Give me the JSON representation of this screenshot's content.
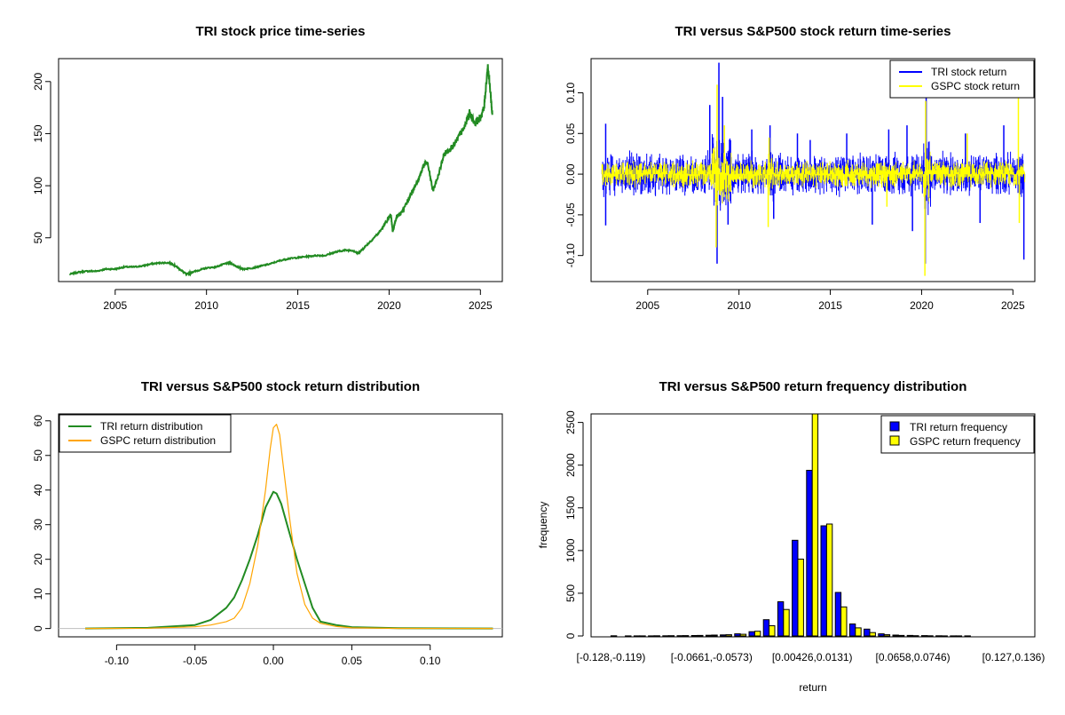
{
  "chart_data": [
    {
      "type": "line",
      "title": "TRI stock price time-series",
      "xlabel": "",
      "ylabel": "",
      "x_ticks": [
        2005,
        2010,
        2015,
        2020,
        2025
      ],
      "y_ticks": [
        50,
        100,
        150,
        200
      ],
      "xlim": [
        2001.9,
        2026.2
      ],
      "ylim": [
        8,
        222
      ],
      "series_color": "#228B22",
      "series": [
        {
          "x": [
            2002.5,
            2003,
            2003.5,
            2004,
            2004.5,
            2005,
            2005.5,
            2006,
            2006.5,
            2007,
            2007.5,
            2008,
            2008.3,
            2008.6,
            2008.9,
            2009.2,
            2009.6,
            2010,
            2010.5,
            2011,
            2011.3,
            2011.7,
            2012,
            2012.5,
            2013,
            2013.5,
            2014,
            2014.5,
            2015,
            2015.5,
            2016,
            2016.5,
            2017,
            2017.5,
            2018,
            2018.3,
            2018.6,
            2019,
            2019.5,
            2019.9,
            2020.1,
            2020.2,
            2020.4,
            2020.7,
            2021,
            2021.3,
            2021.6,
            2021.9,
            2022.1,
            2022.4,
            2022.7,
            2023,
            2023.3,
            2023.6,
            2023.9,
            2024.1,
            2024.4,
            2024.7,
            2025,
            2025.2,
            2025.4,
            2025.55,
            2025.65
          ],
          "y": [
            15,
            17,
            18,
            18,
            20,
            20,
            22,
            22,
            23,
            25,
            26,
            26,
            23,
            19,
            15,
            17,
            19,
            21,
            22,
            25,
            26,
            22,
            20,
            21,
            23,
            25,
            28,
            30,
            31,
            32,
            33,
            33,
            36,
            38,
            38,
            35,
            40,
            47,
            56,
            67,
            72,
            56,
            70,
            74,
            85,
            96,
            105,
            120,
            122,
            95,
            110,
            130,
            135,
            140,
            150,
            155,
            170,
            160,
            165,
            175,
            215,
            190,
            168
          ]
        }
      ]
    },
    {
      "type": "line",
      "title": "TRI versus S&P500 stock return time-series",
      "xlabel": "",
      "ylabel": "",
      "x_ticks": [
        2005,
        2010,
        2015,
        2020,
        2025
      ],
      "y_ticks": [
        -0.1,
        -0.05,
        0.0,
        0.05,
        0.1
      ],
      "y_tick_labels": [
        "-0.10",
        "-0.05",
        "0.00",
        "0.05",
        "0.10"
      ],
      "xlim": [
        2001.9,
        2026.2
      ],
      "ylim": [
        -0.132,
        0.142
      ],
      "legend": {
        "position": "top-right"
      },
      "series": [
        {
          "name": "TRI stock return",
          "color": "#0000FF",
          "events": [
            [
              2002.7,
              0.062
            ],
            [
              2002.7,
              -0.063
            ],
            [
              2008.4,
              0.085
            ],
            [
              2008.8,
              -0.11
            ],
            [
              2008.9,
              0.137
            ],
            [
              2009.1,
              0.095
            ],
            [
              2009.4,
              -0.062
            ],
            [
              2010.7,
              0.055
            ],
            [
              2011.7,
              0.06
            ],
            [
              2011.9,
              -0.055
            ],
            [
              2013.2,
              0.05
            ],
            [
              2013.9,
              0.042
            ],
            [
              2015.9,
              0.05
            ],
            [
              2017.3,
              -0.062
            ],
            [
              2018.2,
              0.055
            ],
            [
              2019.2,
              0.06
            ],
            [
              2019.5,
              -0.07
            ],
            [
              2020.2,
              -0.11
            ],
            [
              2020.25,
              0.1
            ],
            [
              2022.4,
              0.05
            ],
            [
              2023.2,
              -0.06
            ],
            [
              2024.5,
              0.06
            ],
            [
              2025.6,
              -0.105
            ]
          ],
          "base_amplitude": 0.03
        },
        {
          "name": "GSPC stock return",
          "color": "#FFFF00",
          "events": [
            [
              2008.75,
              -0.09
            ],
            [
              2008.8,
              0.11
            ],
            [
              2009.2,
              0.06
            ],
            [
              2011.6,
              -0.065
            ],
            [
              2011.65,
              0.045
            ],
            [
              2018.1,
              -0.04
            ],
            [
              2020.18,
              -0.125
            ],
            [
              2020.22,
              0.09
            ],
            [
              2022.5,
              0.05
            ],
            [
              2025.3,
              0.095
            ],
            [
              2025.35,
              -0.06
            ]
          ],
          "base_amplitude": 0.018
        }
      ]
    },
    {
      "type": "line",
      "title": "TRI versus S&P500 stock return distribution",
      "xlabel": "",
      "ylabel": "",
      "x_ticks": [
        -0.1,
        -0.05,
        0.0,
        0.05,
        0.1
      ],
      "x_tick_labels": [
        "-0.10",
        "-0.05",
        "0.00",
        "0.05",
        "0.10"
      ],
      "y_ticks": [
        0,
        10,
        20,
        30,
        40,
        50,
        60
      ],
      "xlim": [
        -0.137,
        0.146
      ],
      "ylim": [
        -2.4,
        62
      ],
      "legend": {
        "position": "top-left"
      },
      "series": [
        {
          "name": "TRI return distribution",
          "color": "#228B22",
          "x": [
            -0.12,
            -0.08,
            -0.05,
            -0.04,
            -0.03,
            -0.025,
            -0.02,
            -0.015,
            -0.01,
            -0.005,
            0.0,
            0.002,
            0.005,
            0.01,
            0.015,
            0.02,
            0.025,
            0.03,
            0.04,
            0.05,
            0.08,
            0.14
          ],
          "y": [
            0,
            0.2,
            1,
            2.5,
            6,
            9,
            14,
            20,
            27,
            35,
            39.5,
            39,
            36,
            28,
            20,
            13,
            6,
            2,
            1,
            0.4,
            0.1,
            0
          ]
        },
        {
          "name": "GSPC return distribution",
          "color": "#FFA500",
          "x": [
            -0.12,
            -0.08,
            -0.05,
            -0.04,
            -0.03,
            -0.025,
            -0.02,
            -0.015,
            -0.01,
            -0.005,
            -0.002,
            0.0,
            0.002,
            0.004,
            0.006,
            0.01,
            0.015,
            0.02,
            0.025,
            0.03,
            0.04,
            0.05,
            0.08,
            0.14
          ],
          "y": [
            0,
            0.1,
            0.5,
            1,
            2,
            3,
            6,
            13,
            24,
            40,
            52,
            58,
            59,
            56,
            48,
            33,
            16,
            7,
            3,
            1.5,
            0.6,
            0.2,
            0.05,
            0
          ]
        }
      ]
    },
    {
      "type": "bar",
      "title": "TRI versus S&P500 return frequency distribution",
      "xlabel": "return",
      "ylabel": "frequency",
      "y_ticks": [
        0,
        500,
        1000,
        1500,
        2000,
        2500
      ],
      "ylim": [
        0,
        2600
      ],
      "tick_labels": [
        "[-0.128,-0.119)",
        "[-0.0661,-0.0573)",
        "[0.00426,0.0131)",
        "[0.0658,0.0746)",
        "[0.127,0.136)"
      ],
      "tick_label_bins": [
        0,
        7,
        14,
        21,
        28
      ],
      "legend": {
        "position": "top-right"
      },
      "series": [
        {
          "name": "TRI return frequency",
          "color": "#0000FF",
          "values": [
            0,
            0,
            1,
            1,
            2,
            3,
            5,
            8,
            12,
            25,
            50,
            190,
            400,
            1120,
            1940,
            1290,
            510,
            140,
            80,
            25,
            10,
            6,
            4,
            2,
            1,
            1,
            0,
            0,
            0
          ]
        },
        {
          "name": "GSPC return frequency",
          "color": "#FFFF00",
          "values": [
            2,
            1,
            1,
            2,
            3,
            4,
            6,
            10,
            15,
            20,
            55,
            120,
            310,
            900,
            2600,
            1310,
            340,
            95,
            40,
            15,
            6,
            3,
            2,
            1,
            1,
            0,
            0,
            0,
            0
          ]
        }
      ]
    }
  ]
}
